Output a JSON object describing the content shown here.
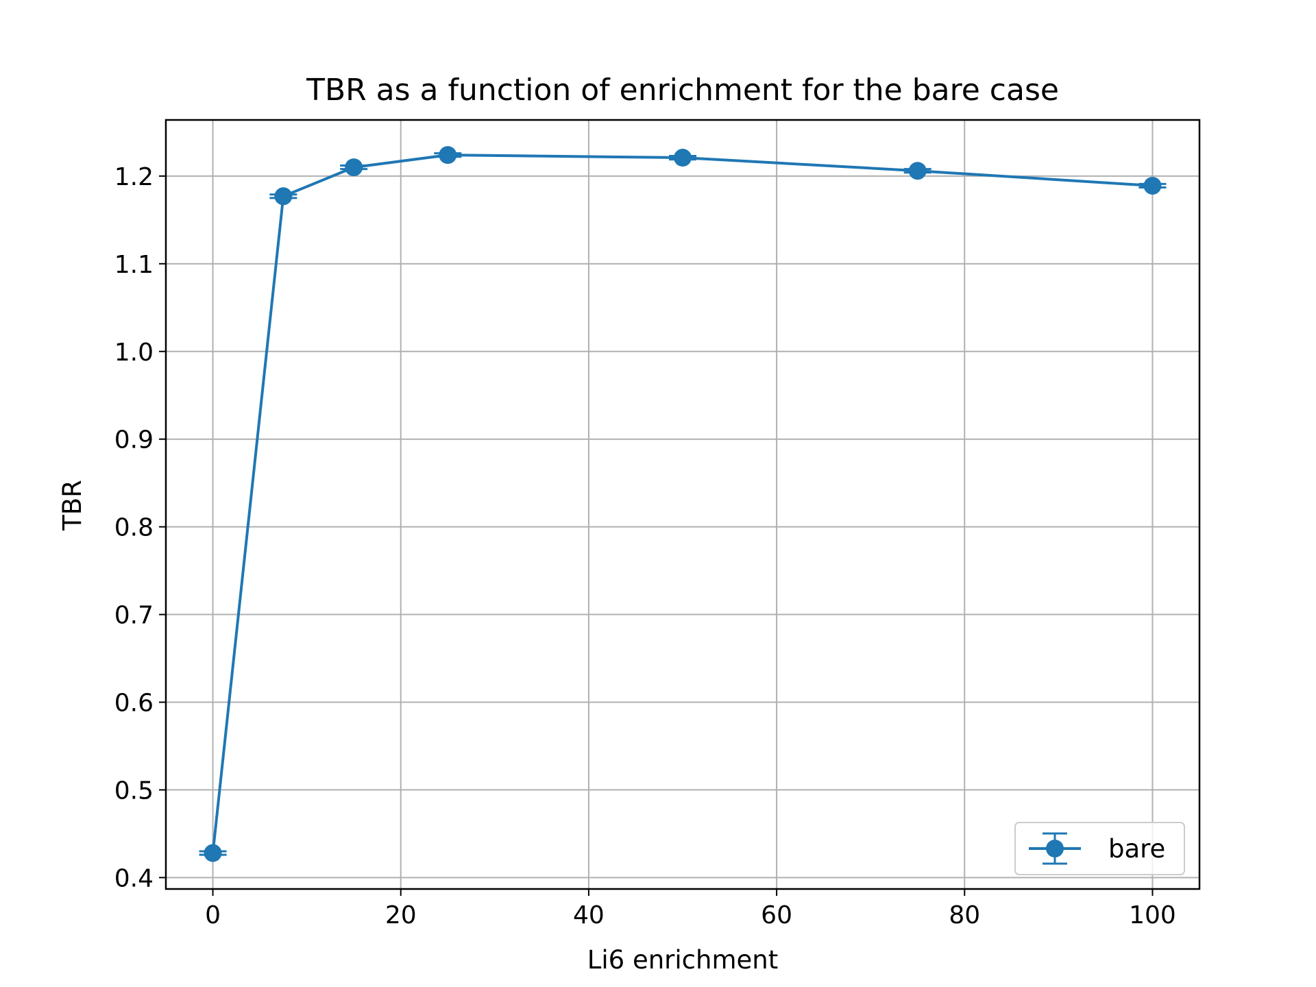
{
  "chart_data": {
    "type": "line",
    "title": "TBR as a function of enrichment for the bare case",
    "xlabel": "Li6 enrichment",
    "ylabel": "TBR",
    "xlim": [
      -5,
      105
    ],
    "ylim": [
      0.387,
      1.264
    ],
    "xticks": [
      0,
      20,
      40,
      60,
      80,
      100
    ],
    "yticks": [
      0.4,
      0.5,
      0.6,
      0.7,
      0.8,
      0.9,
      1.0,
      1.1,
      1.2
    ],
    "xtick_labels": [
      "0",
      "20",
      "40",
      "60",
      "80",
      "100"
    ],
    "ytick_labels": [
      "0.4",
      "0.5",
      "0.6",
      "0.7",
      "0.8",
      "0.9",
      "1.0",
      "1.1",
      "1.2"
    ],
    "grid": true,
    "legend_position": "lower-right",
    "series": [
      {
        "name": "bare",
        "color": "#1f77b4",
        "marker": "circle",
        "error_bars": true,
        "x": [
          0,
          7.5,
          15,
          25,
          50,
          75,
          100
        ],
        "y": [
          0.428,
          1.177,
          1.21,
          1.224,
          1.221,
          1.206,
          1.189
        ],
        "yerr": [
          0.002,
          0.002,
          0.002,
          0.002,
          0.002,
          0.002,
          0.002
        ]
      }
    ]
  }
}
